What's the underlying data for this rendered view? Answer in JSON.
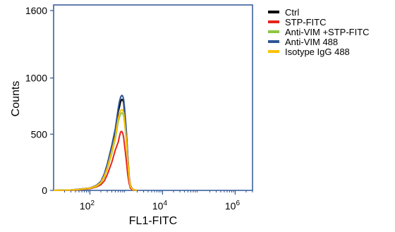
{
  "chart_data": {
    "type": "line",
    "xlabel": "FL1-FITC",
    "ylabel": "Counts",
    "xscale": "log",
    "xlim": [
      10,
      3000000
    ],
    "ylim": [
      0,
      1650
    ],
    "grid": false,
    "legend_position": "top-right",
    "y_ticks": [
      {
        "value": 0,
        "label": "0"
      },
      {
        "value": 500,
        "label": "500"
      },
      {
        "value": 1000,
        "label": "1000"
      },
      {
        "value": 1600,
        "label": "1600"
      }
    ],
    "x_ticks": [
      {
        "value": 100,
        "base": "10",
        "exp": "2"
      },
      {
        "value": 10000,
        "base": "10",
        "exp": "4"
      },
      {
        "value": 1000000,
        "base": "10",
        "exp": "6"
      }
    ],
    "series": [
      {
        "name": "Ctrl",
        "color": "#000000",
        "points": [
          [
            10,
            0
          ],
          [
            30,
            4
          ],
          [
            50,
            10
          ],
          [
            100,
            20
          ],
          [
            150,
            40
          ],
          [
            200,
            75
          ],
          [
            250,
            140
          ],
          [
            300,
            220
          ],
          [
            400,
            380
          ],
          [
            500,
            520
          ],
          [
            560,
            630
          ],
          [
            600,
            700
          ],
          [
            650,
            740
          ],
          [
            700,
            790
          ],
          [
            750,
            810
          ],
          [
            800,
            805
          ],
          [
            850,
            780
          ],
          [
            900,
            700
          ],
          [
            1000,
            520
          ],
          [
            1100,
            300
          ],
          [
            1200,
            120
          ],
          [
            1300,
            40
          ],
          [
            1500,
            8
          ],
          [
            2000,
            0
          ]
        ]
      },
      {
        "name": "STP-FITC",
        "color": "#e8231c",
        "points": [
          [
            10,
            0
          ],
          [
            30,
            2
          ],
          [
            50,
            6
          ],
          [
            100,
            15
          ],
          [
            150,
            30
          ],
          [
            200,
            50
          ],
          [
            250,
            85
          ],
          [
            300,
            140
          ],
          [
            400,
            250
          ],
          [
            500,
            360
          ],
          [
            600,
            430
          ],
          [
            650,
            480
          ],
          [
            700,
            520
          ],
          [
            750,
            525
          ],
          [
            800,
            510
          ],
          [
            850,
            470
          ],
          [
            900,
            400
          ],
          [
            1000,
            270
          ],
          [
            1100,
            140
          ],
          [
            1200,
            60
          ],
          [
            1300,
            20
          ],
          [
            1500,
            5
          ],
          [
            2000,
            0
          ]
        ]
      },
      {
        "name": "Anti-VIM +STP-FITC",
        "color": "#8dc63f",
        "points": [
          [
            10,
            0
          ],
          [
            30,
            3
          ],
          [
            50,
            8
          ],
          [
            100,
            18
          ],
          [
            150,
            35
          ],
          [
            200,
            65
          ],
          [
            250,
            120
          ],
          [
            300,
            190
          ],
          [
            400,
            330
          ],
          [
            500,
            460
          ],
          [
            560,
            550
          ],
          [
            600,
            610
          ],
          [
            650,
            650
          ],
          [
            700,
            680
          ],
          [
            750,
            690
          ],
          [
            800,
            685
          ],
          [
            850,
            660
          ],
          [
            900,
            600
          ],
          [
            1000,
            450
          ],
          [
            1100,
            260
          ],
          [
            1200,
            110
          ],
          [
            1300,
            35
          ],
          [
            1500,
            8
          ],
          [
            2000,
            0
          ]
        ]
      },
      {
        "name": "Anti-VIM  488",
        "color": "#2f5597",
        "points": [
          [
            10,
            0
          ],
          [
            30,
            4
          ],
          [
            50,
            10
          ],
          [
            100,
            22
          ],
          [
            150,
            45
          ],
          [
            200,
            80
          ],
          [
            250,
            150
          ],
          [
            300,
            235
          ],
          [
            400,
            400
          ],
          [
            500,
            550
          ],
          [
            560,
            660
          ],
          [
            600,
            730
          ],
          [
            650,
            790
          ],
          [
            700,
            830
          ],
          [
            750,
            845
          ],
          [
            800,
            840
          ],
          [
            850,
            810
          ],
          [
            900,
            730
          ],
          [
            1000,
            540
          ],
          [
            1100,
            310
          ],
          [
            1200,
            125
          ],
          [
            1300,
            45
          ],
          [
            1500,
            10
          ],
          [
            2000,
            0
          ]
        ]
      },
      {
        "name": "Isotype IgG 488",
        "color": "#ffc000",
        "points": [
          [
            10,
            0
          ],
          [
            30,
            3
          ],
          [
            50,
            9
          ],
          [
            100,
            20
          ],
          [
            150,
            40
          ],
          [
            200,
            70
          ],
          [
            250,
            130
          ],
          [
            300,
            200
          ],
          [
            400,
            350
          ],
          [
            500,
            480
          ],
          [
            560,
            580
          ],
          [
            600,
            640
          ],
          [
            650,
            680
          ],
          [
            700,
            710
          ],
          [
            750,
            720
          ],
          [
            800,
            715
          ],
          [
            850,
            690
          ],
          [
            900,
            620
          ],
          [
            1000,
            460
          ],
          [
            1100,
            270
          ],
          [
            1200,
            110
          ],
          [
            1300,
            38
          ],
          [
            1500,
            9
          ],
          [
            2000,
            0
          ]
        ]
      }
    ]
  }
}
